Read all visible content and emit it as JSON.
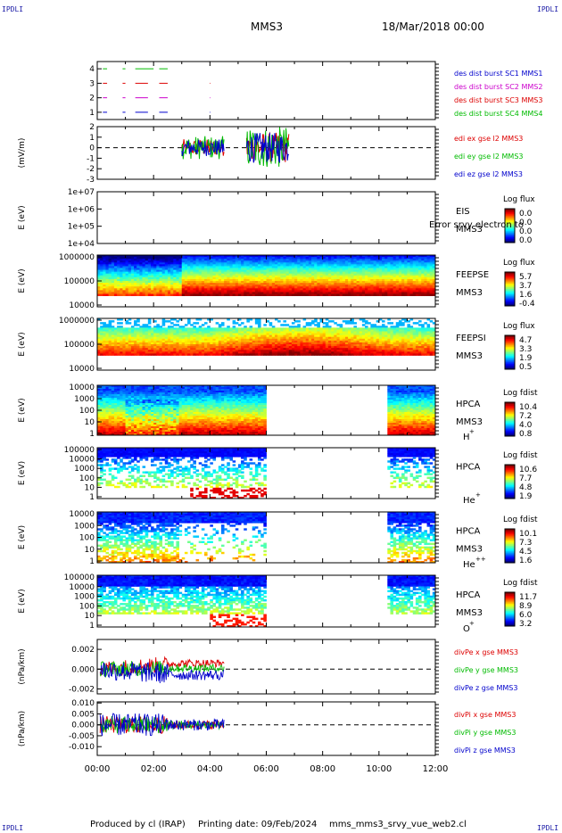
{
  "header": {
    "corner_label": "IPDLI",
    "spacecraft": "MMS3",
    "date": "18/Mar/2018 00:00"
  },
  "footer": {
    "produced_by": "Produced by cl (IRAP)",
    "printing_date": "Printing date: 09/Feb/2024",
    "file": "mms_mms3_srvy_vue_web2.cl"
  },
  "chart_data": [
    {
      "id": "burst",
      "type": "line",
      "x_unit": "hour",
      "xlim": [
        0,
        12
      ],
      "ylabel": "",
      "ylim": [
        0.5,
        4.5
      ],
      "yticks": [
        "1",
        "2",
        "3",
        "4"
      ],
      "series": [
        {
          "name": "des dist burst SC1 MMS1",
          "color": "#0000cc",
          "level": 1,
          "intervals": [
            [
              0.2,
              0.35
            ],
            [
              0.9,
              1.0
            ],
            [
              1.35,
              1.8
            ],
            [
              2.2,
              2.5
            ],
            [
              4.0,
              4.02
            ]
          ]
        },
        {
          "name": "des dist burst SC2 MMS2",
          "color": "#cc00cc",
          "level": 2,
          "intervals": [
            [
              0.2,
              0.35
            ],
            [
              0.9,
              1.0
            ],
            [
              1.35,
              1.8
            ],
            [
              2.2,
              2.5
            ],
            [
              4.0,
              4.02
            ]
          ]
        },
        {
          "name": "des dist burst SC3 MMS3",
          "color": "#dd0000",
          "level": 3,
          "intervals": [
            [
              0.2,
              0.35
            ],
            [
              0.9,
              1.0
            ],
            [
              1.35,
              1.8
            ],
            [
              2.2,
              2.5
            ],
            [
              4.0,
              4.02
            ]
          ]
        },
        {
          "name": "des dist burst SC4 MMS4",
          "color": "#00bb00",
          "level": 4,
          "intervals": [
            [
              0.2,
              0.35
            ],
            [
              0.9,
              1.0
            ],
            [
              1.35,
              2.0
            ],
            [
              2.2,
              2.5
            ]
          ]
        }
      ]
    },
    {
      "id": "edi",
      "type": "line",
      "x_unit": "hour",
      "xlim": [
        0,
        12
      ],
      "ylabel": "(mV/m)",
      "ylim": [
        -3,
        2
      ],
      "yticks": [
        "-3",
        "-2",
        "-1",
        "0",
        "1",
        "2"
      ],
      "series": [
        {
          "name": "edi ex gse l2 MMS3",
          "color": "#dd0000"
        },
        {
          "name": "edi ey gse l2 MMS3",
          "color": "#00bb00"
        },
        {
          "name": "edi ez gse l2 MMS3",
          "color": "#0000cc"
        }
      ],
      "activity": [
        [
          3.0,
          4.5,
          1.0
        ],
        [
          5.3,
          6.8,
          1.8
        ]
      ]
    },
    {
      "id": "eis",
      "type": "heatmap",
      "ylabel": "E (eV)",
      "yticks": [
        "1e+04",
        "1e+05",
        "1e+06",
        "1e+07"
      ],
      "instrument": "EIS",
      "spacecraft": "MMS3",
      "colorbar_title": "Log flux",
      "colorbar_ticks": [
        "0.0",
        "0.0",
        "0.0",
        "0.0"
      ],
      "overlay_text": "Error srvy electron to",
      "empty": true
    },
    {
      "id": "feepse",
      "type": "heatmap",
      "ylabel": "E (eV)",
      "yticks": [
        "10000",
        "100000",
        "1000000"
      ],
      "instrument": "FEEPSE",
      "spacecraft": "MMS3",
      "colorbar_title": "Log flux",
      "colorbar_ticks": [
        "5.7",
        "3.7",
        "1.6",
        "-0.4"
      ],
      "coverage": [
        [
          0,
          12
        ]
      ]
    },
    {
      "id": "feepsi",
      "type": "heatmap",
      "ylabel": "E (eV)",
      "yticks": [
        "10000",
        "100000",
        "1000000"
      ],
      "instrument": "FEEPSI",
      "spacecraft": "MMS3",
      "colorbar_title": "Log flux",
      "colorbar_ticks": [
        "4.7",
        "3.3",
        "1.9",
        "0.5"
      ],
      "coverage": [
        [
          0,
          12
        ]
      ]
    },
    {
      "id": "hpca_h",
      "type": "heatmap",
      "ylabel": "E (eV)",
      "yticks": [
        "1",
        "10",
        "100",
        "1000",
        "10000"
      ],
      "instrument": "HPCA",
      "spacecraft": "MMS3",
      "species": "H",
      "species_sup": "+",
      "colorbar_title": "Log fdist",
      "colorbar_ticks": [
        "10.4",
        "7.2",
        "4.0",
        "0.8"
      ],
      "coverage": [
        [
          0,
          5.95
        ],
        [
          10.35,
          12
        ]
      ]
    },
    {
      "id": "hpca_he",
      "type": "heatmap",
      "ylabel": "E (eV)",
      "yticks": [
        "1",
        "10",
        "100",
        "1000",
        "10000",
        "100000"
      ],
      "instrument": "HPCA",
      "spacecraft": "",
      "species": "He",
      "species_sup": "+",
      "colorbar_title": "Log fdist",
      "colorbar_ticks": [
        "10.6",
        "7.7",
        "4.8",
        "1.9"
      ],
      "coverage": [
        [
          0,
          5.95
        ],
        [
          10.35,
          12
        ]
      ]
    },
    {
      "id": "hpca_hepp",
      "type": "heatmap",
      "ylabel": "E (eV)",
      "yticks": [
        "1",
        "10",
        "100",
        "1000",
        "10000"
      ],
      "instrument": "HPCA",
      "spacecraft": "MMS3",
      "species": "He",
      "species_sup": "++",
      "colorbar_title": "Log fdist",
      "colorbar_ticks": [
        "10.1",
        "7.3",
        "4.5",
        "1.6"
      ],
      "coverage": [
        [
          0,
          5.95
        ],
        [
          10.35,
          12
        ]
      ]
    },
    {
      "id": "hpca_o",
      "type": "heatmap",
      "ylabel": "E (eV)",
      "yticks": [
        "1",
        "10",
        "100",
        "1000",
        "10000",
        "100000"
      ],
      "instrument": "HPCA",
      "spacecraft": "MMS3",
      "species": "O",
      "species_sup": "+",
      "colorbar_title": "Log fdist",
      "colorbar_ticks": [
        "11.7",
        "8.9",
        "6.0",
        "3.2"
      ],
      "coverage": [
        [
          0,
          5.95
        ],
        [
          10.35,
          12
        ]
      ]
    },
    {
      "id": "divpe",
      "type": "line",
      "x_unit": "hour",
      "xlim": [
        0,
        12
      ],
      "ylabel": "(nPa/km)",
      "ylim": [
        -0.0025,
        0.003
      ],
      "yticks": [
        "-0.002",
        "0.000",
        "0.002"
      ],
      "series": [
        {
          "name": "divPe x gse MMS3",
          "color": "#dd0000",
          "end_value": 0.0006
        },
        {
          "name": "divPe y gse MMS3",
          "color": "#00bb00",
          "end_value": 0.0001
        },
        {
          "name": "divPe z gse MMS3",
          "color": "#0000cc",
          "end_value": -0.0006
        }
      ],
      "data_end_hour": 4.5
    },
    {
      "id": "divpi",
      "type": "line",
      "x_unit": "hour",
      "xlim": [
        0,
        12
      ],
      "ylabel": "(nPa/km)",
      "ylim": [
        -0.014,
        0.0105
      ],
      "yticks": [
        "-0.010",
        "-0.005",
        "0.000",
        "0.005",
        "0.010"
      ],
      "series": [
        {
          "name": "divPi x gse MMS3",
          "color": "#dd0000"
        },
        {
          "name": "divPi y gse MMS3",
          "color": "#00bb00"
        },
        {
          "name": "divPi z gse MMS3",
          "color": "#0000cc"
        }
      ],
      "data_end_hour": 4.5
    }
  ],
  "x_axis": {
    "ticks": [
      "00:00",
      "02:00",
      "04:00",
      "06:00",
      "08:00",
      "10:00",
      "12:00"
    ]
  }
}
